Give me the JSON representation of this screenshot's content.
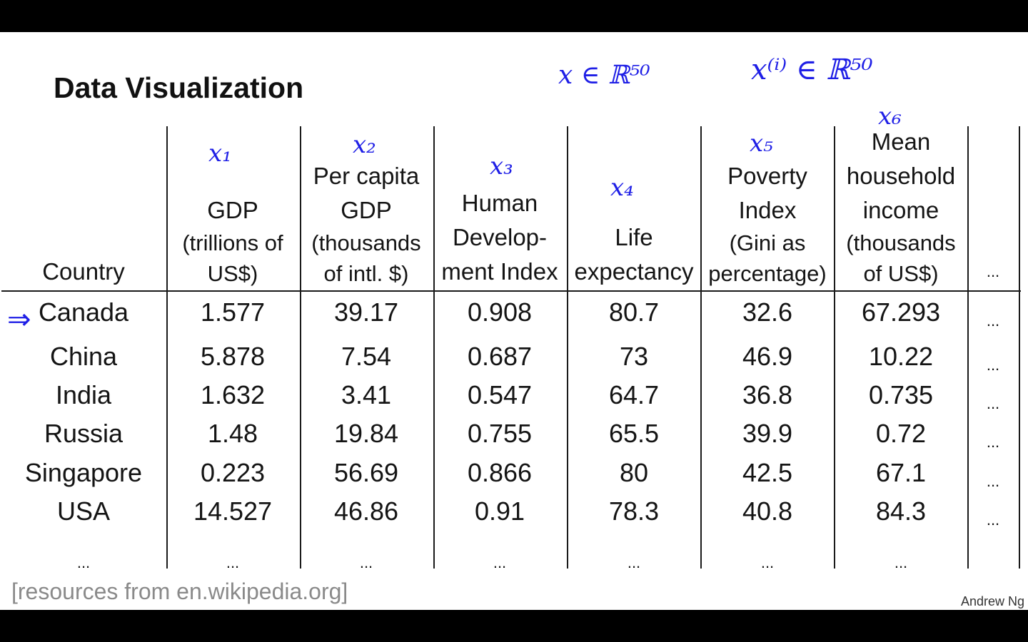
{
  "title": "Data Visualization",
  "source": "[resources from en.wikipedia.org]",
  "author": "Andrew Ng",
  "annotations": {
    "x_in_r50": "x ∈ ℝ⁵⁰",
    "xi_in_r50": "x⁽ⁱ⁾ ∈ ℝ⁵⁰",
    "feature_labels": [
      "x₁",
      "x₂",
      "x₃",
      "x₄",
      "x₅",
      "x₆"
    ],
    "arrow": "⇒"
  },
  "table": {
    "headers": [
      {
        "main": "Country",
        "sub": ""
      },
      {
        "main": "GDP",
        "sub": "(trillions of\nUS$)"
      },
      {
        "main": "Per capita\nGDP",
        "sub": "(thousands\nof intl. $)"
      },
      {
        "main": "Human\nDevelop-\nment Index",
        "sub": ""
      },
      {
        "main": "Life\nexpectancy",
        "sub": ""
      },
      {
        "main": "Poverty\nIndex",
        "sub": "(Gini as\npercentage)"
      },
      {
        "main": "Mean\nhousehold\nincome",
        "sub": "(thousands\nof US$)"
      },
      {
        "main": "...",
        "sub": ""
      }
    ],
    "rows": [
      [
        "Canada",
        "1.577",
        "39.17",
        "0.908",
        "80.7",
        "32.6",
        "67.293",
        "..."
      ],
      [
        "China",
        "5.878",
        "7.54",
        "0.687",
        "73",
        "46.9",
        "10.22",
        "..."
      ],
      [
        "India",
        "1.632",
        "3.41",
        "0.547",
        "64.7",
        "36.8",
        "0.735",
        "..."
      ],
      [
        "Russia",
        "1.48",
        "19.84",
        "0.755",
        "65.5",
        "39.9",
        "0.72",
        "..."
      ],
      [
        "Singapore",
        "0.223",
        "56.69",
        "0.866",
        "80",
        "42.5",
        "67.1",
        "..."
      ],
      [
        "USA",
        "14.527",
        "46.86",
        "0.91",
        "78.3",
        "40.8",
        "84.3",
        "..."
      ],
      [
        "...",
        "...",
        "...",
        "...",
        "...",
        "...",
        "...",
        ""
      ]
    ]
  }
}
